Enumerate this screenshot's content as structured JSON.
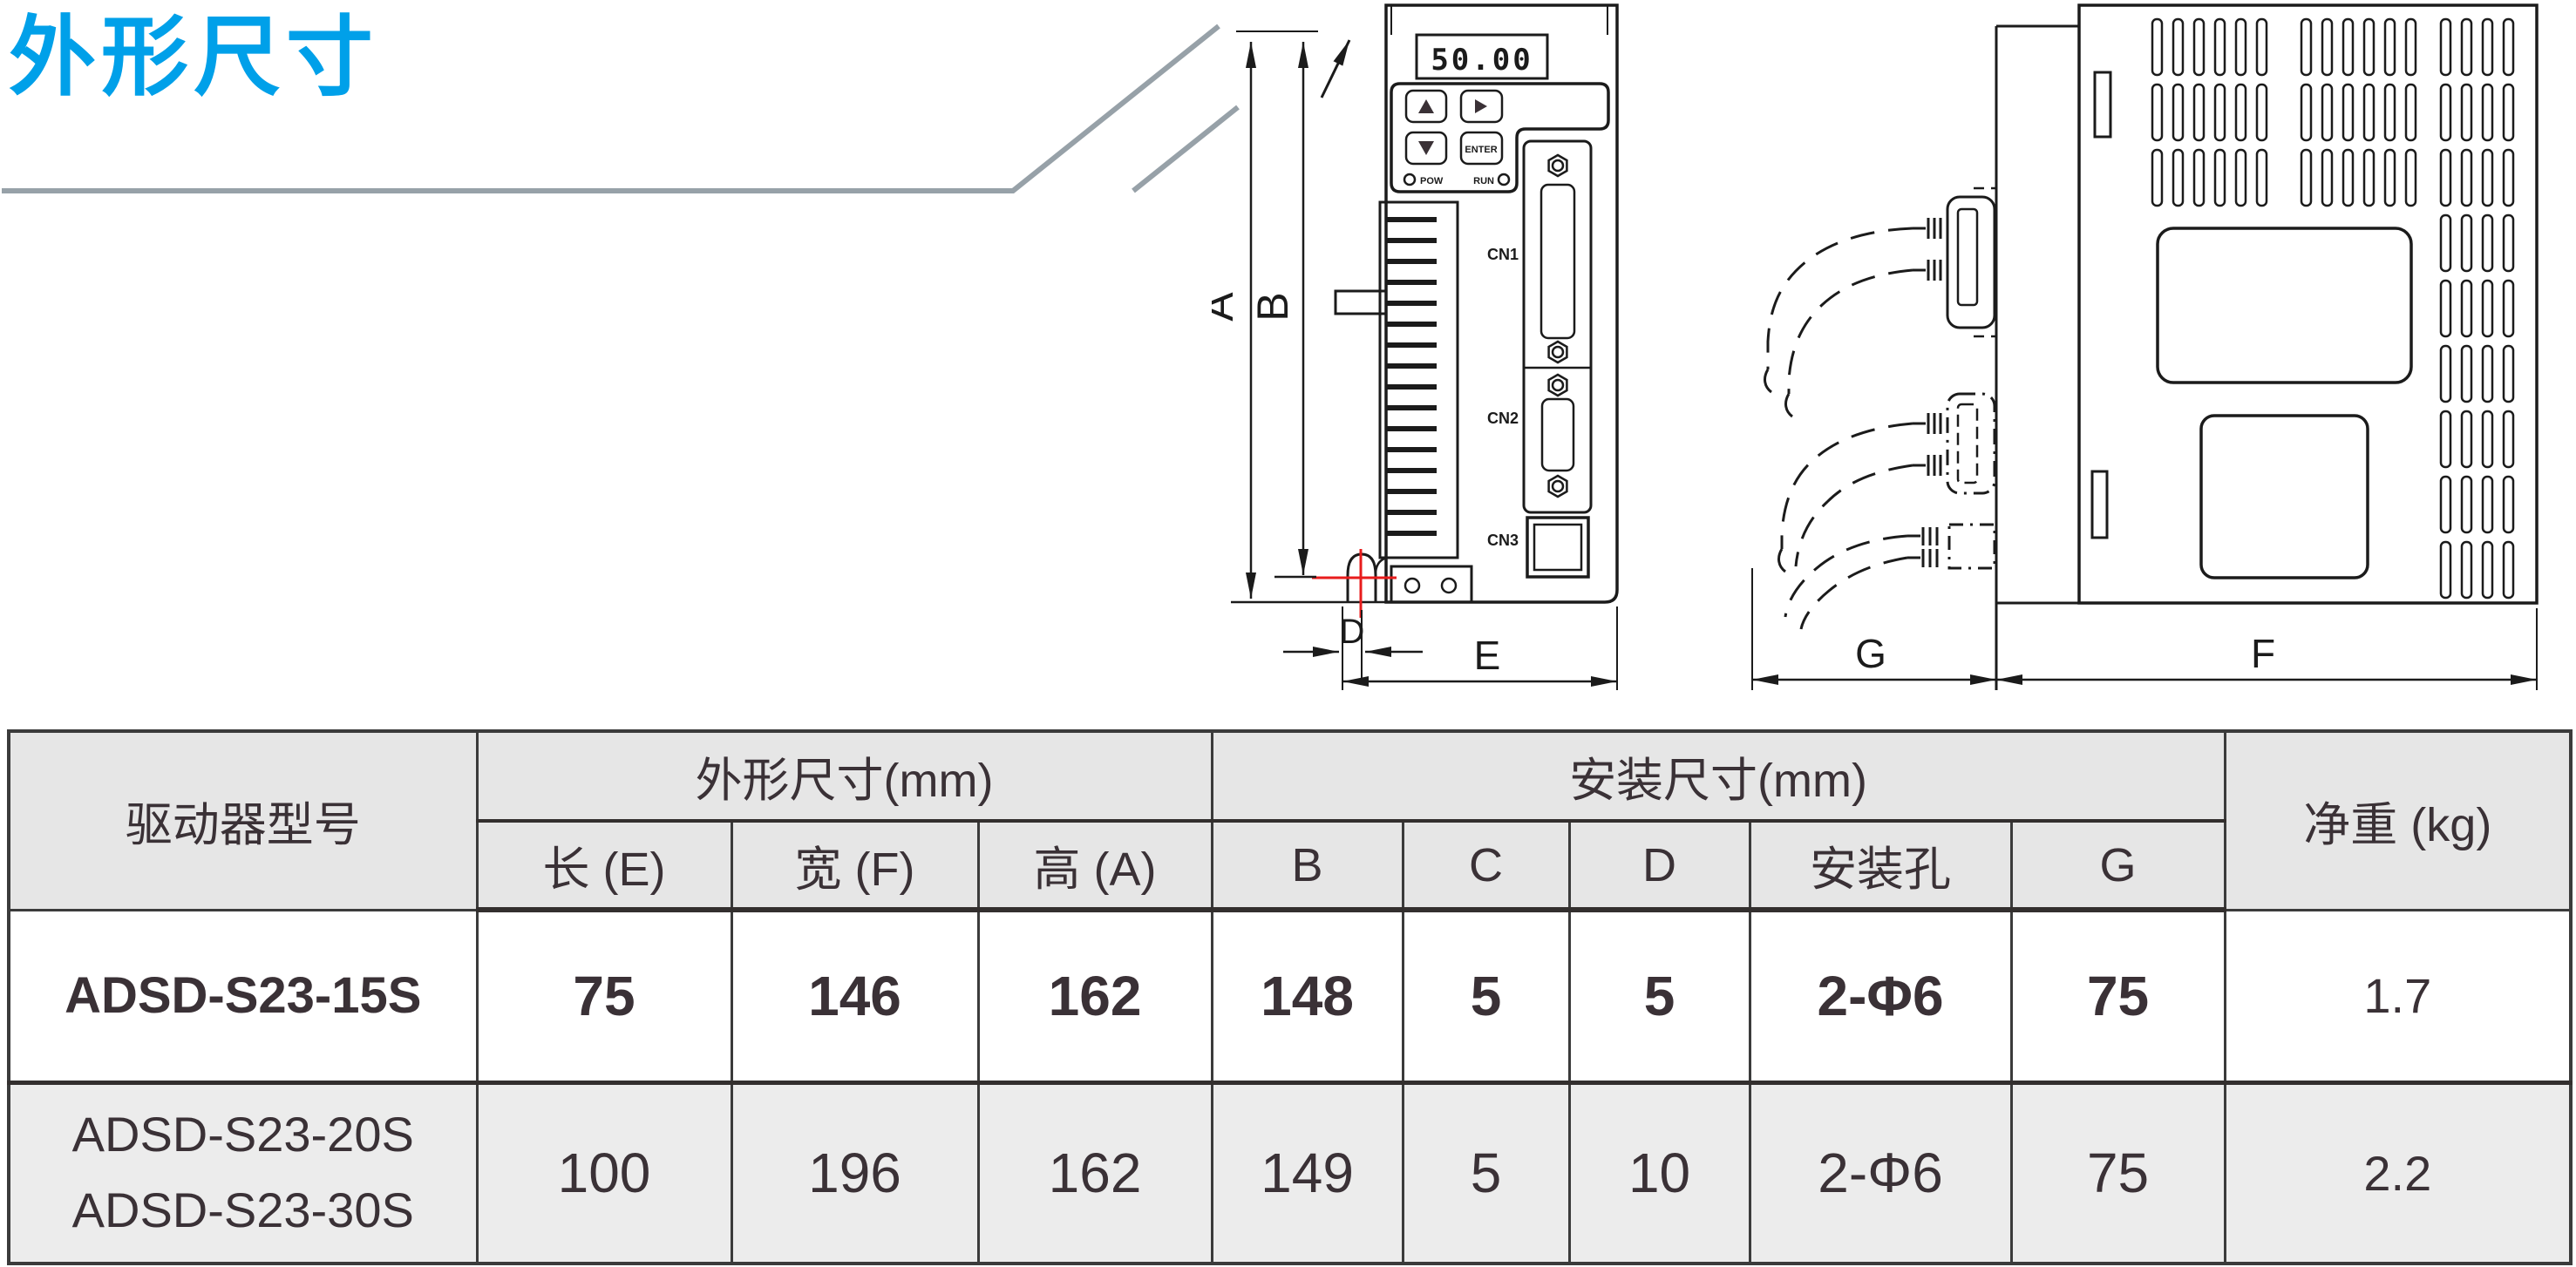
{
  "title": {
    "text": "外形尺寸"
  },
  "drawing": {
    "front_view": {
      "display_value": "50.00",
      "enter_label": "ENTER",
      "pow_label": "POW",
      "run_label": "RUN",
      "connector_labels": [
        "CN1",
        "CN2",
        "CN3"
      ]
    },
    "dimension_labels": {
      "height_total": "A",
      "height_mount": "B",
      "offset": "D",
      "width": "E",
      "cable_clearance": "G",
      "depth": "F"
    }
  },
  "table": {
    "headers": {
      "model": "驱动器型号",
      "outline_group": "外形尺寸(mm)",
      "mount_group": "安装尺寸(mm)",
      "weight": "净重 (kg)",
      "sub": [
        "长 (E)",
        "宽 (F)",
        "高 (A)",
        "B",
        "C",
        "D",
        "安装孔",
        "G"
      ]
    },
    "rows": [
      {
        "models": [
          "ADSD-S23-15S"
        ],
        "length_e": "75",
        "width_f": "146",
        "height_a": "162",
        "b": "148",
        "c": "5",
        "d": "5",
        "mount_hole": "2-Φ6",
        "g": "75",
        "weight": "1.7"
      },
      {
        "models": [
          "ADSD-S23-20S",
          "ADSD-S23-30S"
        ],
        "length_e": "100",
        "width_f": "196",
        "height_a": "162",
        "b": "149",
        "c": "5",
        "d": "10",
        "mount_hole": "2-Φ6",
        "g": "75",
        "weight": "2.2"
      }
    ]
  },
  "colors": {
    "accent_blue": "#00a0e9",
    "decor_gray": "#97a1a8",
    "ink": "#1b1b1b",
    "table_border": "#3b3b3b",
    "header_bg": "#e6e6e6",
    "row_alt_bg": "#ececec",
    "crosshair_red": "#e81c1c"
  }
}
